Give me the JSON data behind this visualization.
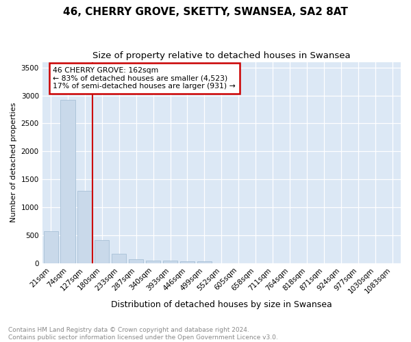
{
  "title": "46, CHERRY GROVE, SKETTY, SWANSEA, SA2 8AT",
  "subtitle": "Size of property relative to detached houses in Swansea",
  "xlabel": "Distribution of detached houses by size in Swansea",
  "ylabel": "Number of detached properties",
  "footnote1": "Contains HM Land Registry data © Crown copyright and database right 2024.",
  "footnote2": "Contains public sector information licensed under the Open Government Licence v3.0.",
  "bar_labels": [
    "21sqm",
    "74sqm",
    "127sqm",
    "180sqm",
    "233sqm",
    "287sqm",
    "340sqm",
    "393sqm",
    "446sqm",
    "499sqm",
    "552sqm",
    "605sqm",
    "658sqm",
    "711sqm",
    "764sqm",
    "818sqm",
    "871sqm",
    "924sqm",
    "977sqm",
    "1030sqm",
    "1083sqm"
  ],
  "bar_values": [
    570,
    2920,
    1300,
    420,
    170,
    75,
    50,
    45,
    35,
    30,
    0,
    0,
    0,
    0,
    0,
    0,
    0,
    0,
    0,
    0,
    0
  ],
  "bar_color": "#c9d9ea",
  "bar_edge_color": "#a8c0d6",
  "vline_color": "#cc0000",
  "vline_position": 2.45,
  "annotation_box_color": "#cc0000",
  "property_label": "46 CHERRY GROVE: 162sqm",
  "annotation_line1": "← 83% of detached houses are smaller (4,523)",
  "annotation_line2": "17% of semi-detached houses are larger (931) →",
  "ylim": [
    0,
    3600
  ],
  "yticks": [
    0,
    500,
    1000,
    1500,
    2000,
    2500,
    3000,
    3500
  ],
  "figure_bg": "#ffffff",
  "plot_bg": "#dce8f5",
  "grid_color": "#ffffff",
  "title_fontsize": 11,
  "subtitle_fontsize": 9.5,
  "xlabel_fontsize": 9,
  "ylabel_fontsize": 8,
  "tick_fontsize": 7.5,
  "footnote_fontsize": 6.5,
  "footnote_color": "#888888"
}
